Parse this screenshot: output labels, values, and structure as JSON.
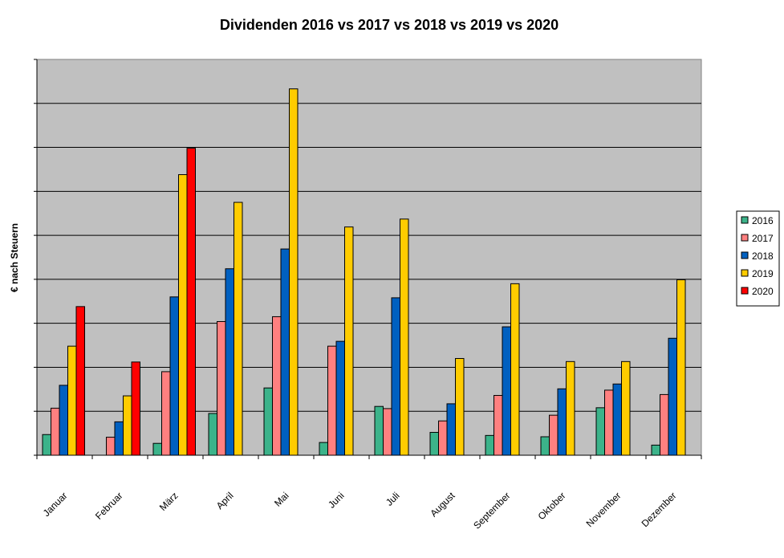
{
  "chart_data": {
    "type": "bar",
    "title": "Dividenden 2016 vs 2017 vs 2018 vs 2019 vs 2020",
    "ylabel": "€ nach Steuern",
    "xlabel": "",
    "ylim": [
      0,
      9
    ],
    "grid": true,
    "legend_position": "right",
    "categories": [
      "Januar",
      "Februar",
      "März",
      "April",
      "Mai",
      "Juni",
      "Juli",
      "August",
      "September",
      "Oktober",
      "November",
      "Dezember"
    ],
    "series": [
      {
        "name": "2016",
        "color": "#3cb38a",
        "values": [
          0.47,
          0.0,
          0.27,
          0.95,
          1.53,
          0.29,
          1.11,
          0.52,
          0.45,
          0.42,
          1.08,
          0.23
        ]
      },
      {
        "name": "2017",
        "color": "#ff8080",
        "values": [
          1.07,
          0.41,
          1.9,
          3.04,
          3.15,
          2.48,
          1.06,
          0.78,
          1.36,
          0.91,
          1.48,
          1.38
        ]
      },
      {
        "name": "2018",
        "color": "#0060c0",
        "values": [
          1.59,
          0.76,
          3.6,
          4.24,
          4.69,
          2.59,
          3.58,
          1.17,
          2.92,
          1.51,
          1.62,
          2.66
        ]
      },
      {
        "name": "2019",
        "color": "#ffcc00",
        "values": [
          2.48,
          1.35,
          6.38,
          5.75,
          8.33,
          5.19,
          5.37,
          2.2,
          3.9,
          2.13,
          2.13,
          3.99
        ]
      },
      {
        "name": "2020",
        "color": "#ff0000",
        "values": [
          3.38,
          2.12,
          6.98,
          null,
          null,
          null,
          null,
          null,
          null,
          null,
          null,
          null
        ]
      }
    ]
  }
}
